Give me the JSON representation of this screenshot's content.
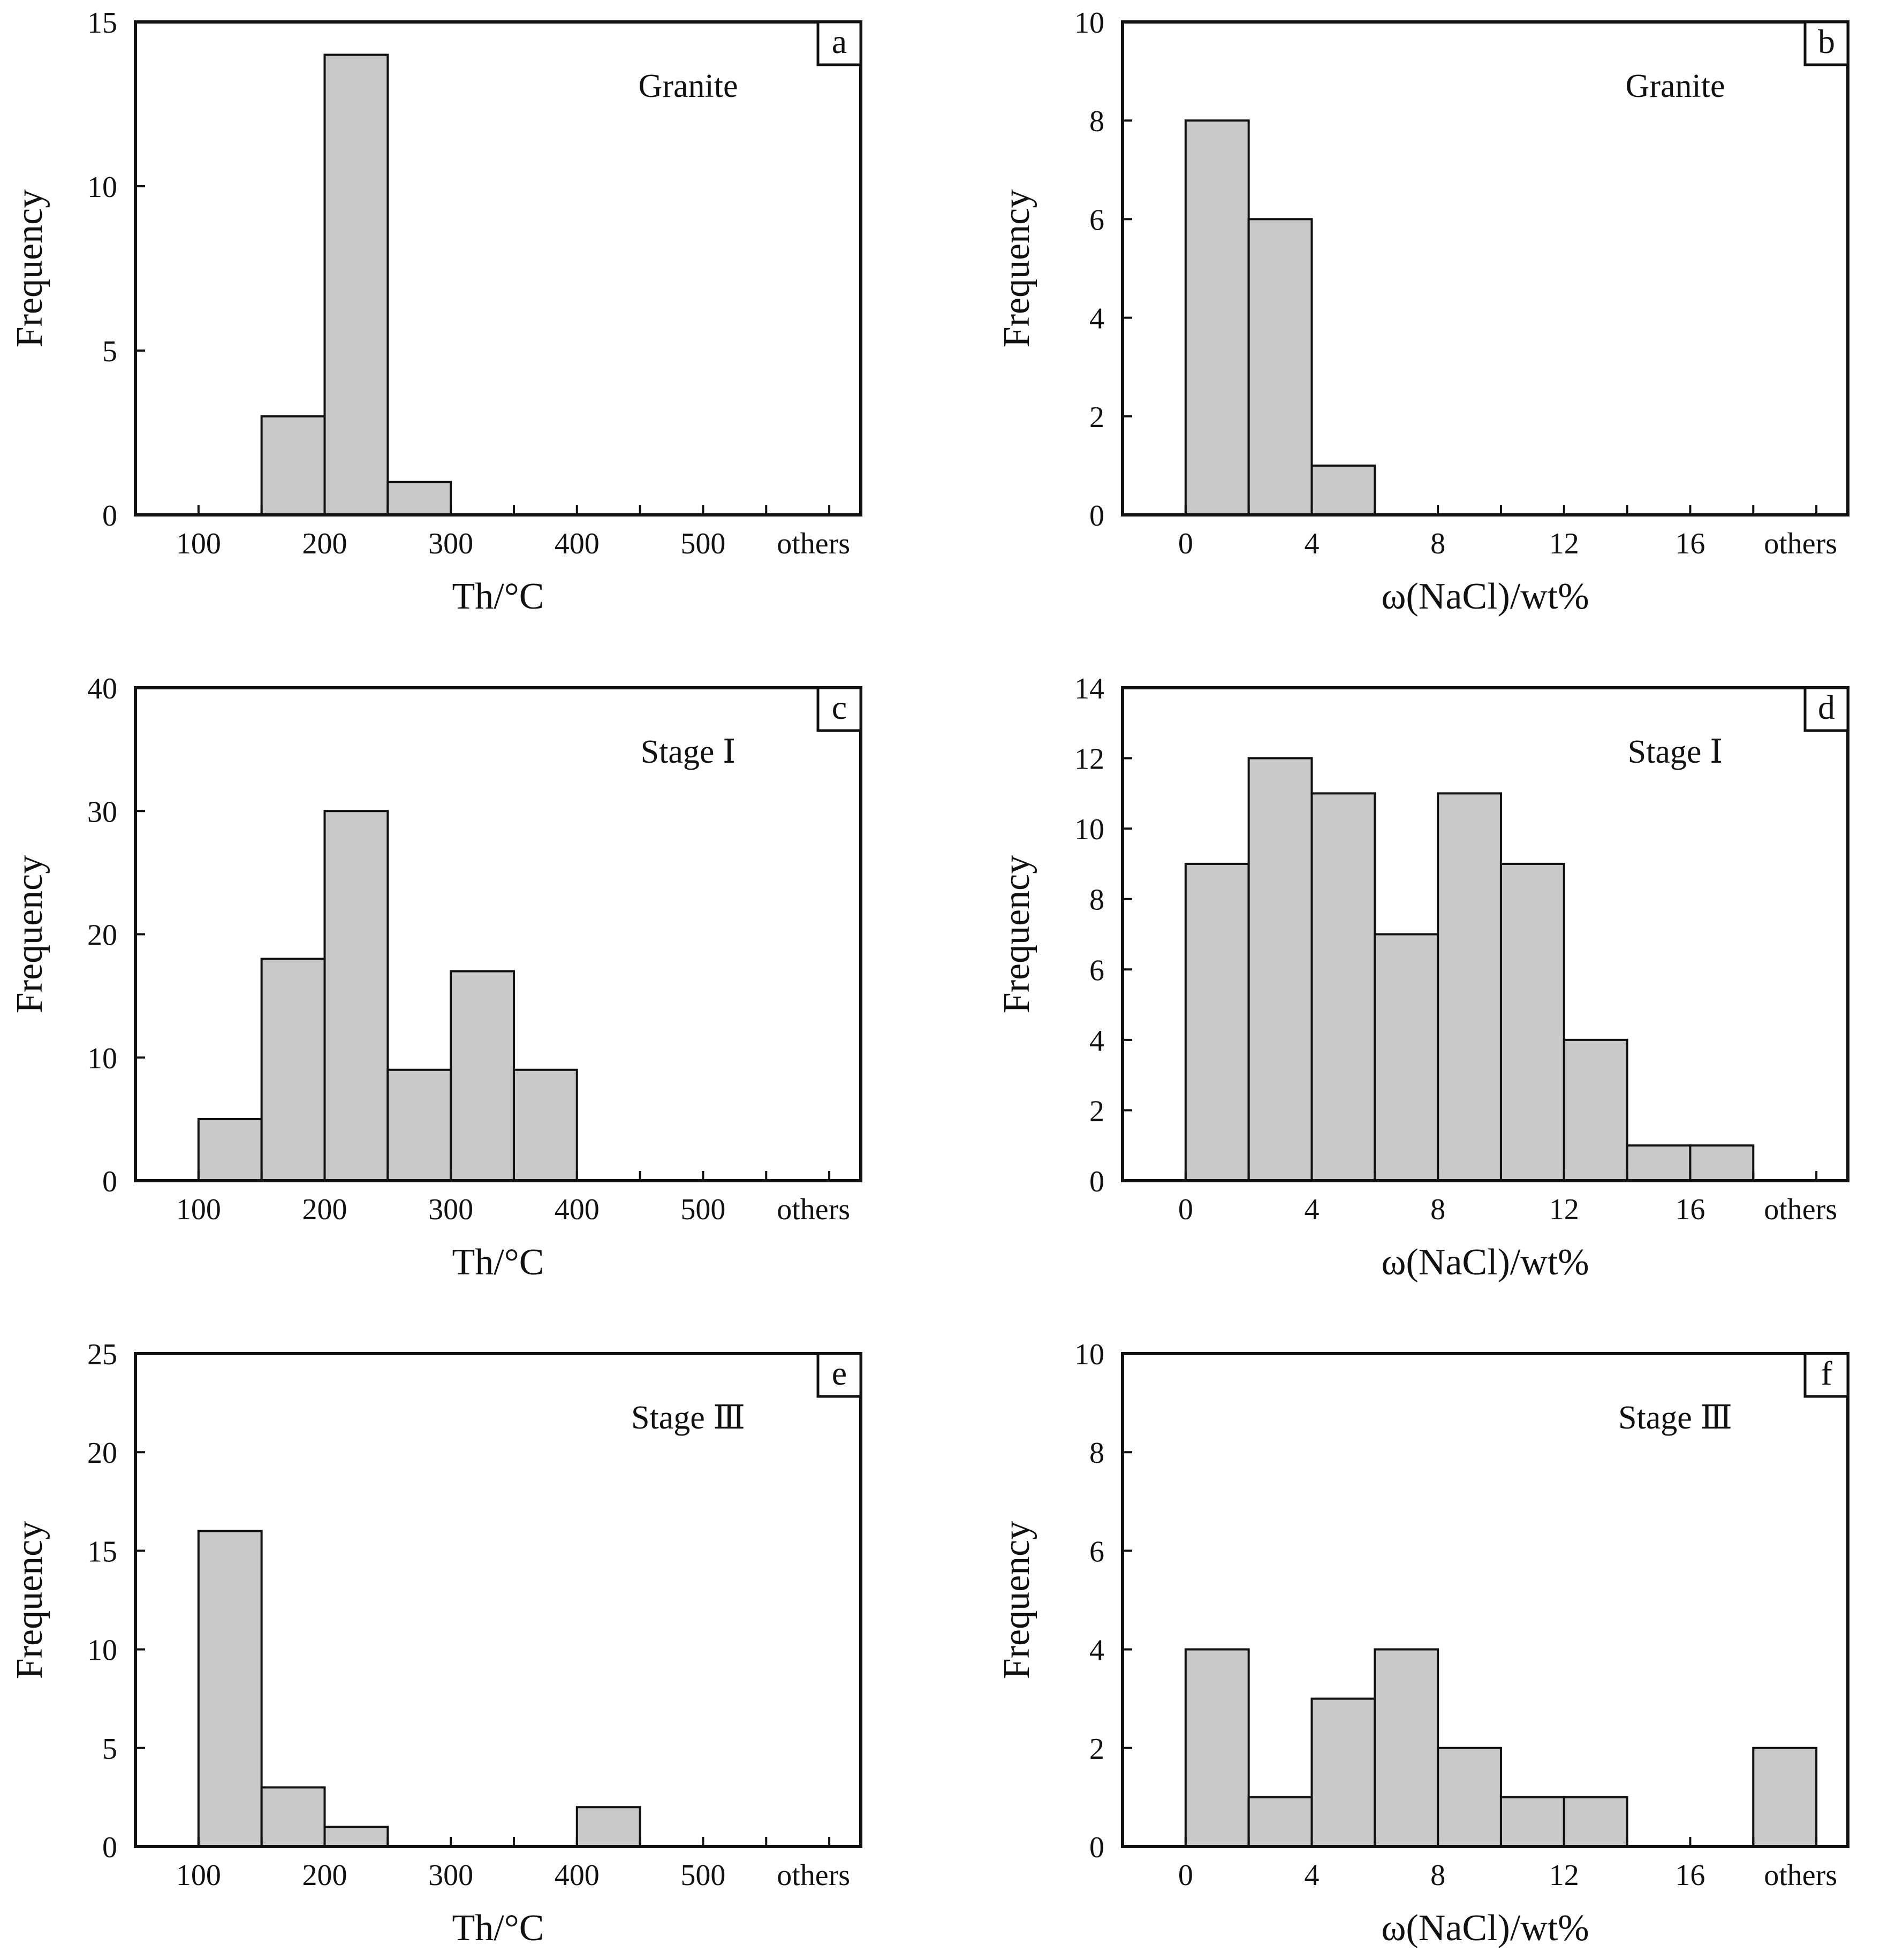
{
  "chart_data": [
    {
      "id": "a",
      "type": "bar",
      "panel_label": "a",
      "title": "Granite",
      "xlabel": "Th/°C",
      "ylabel": "Frequency",
      "ylim": [
        0,
        15
      ],
      "yticks": [
        0,
        5,
        10,
        15
      ],
      "xtick_labels": [
        "100",
        "200",
        "300",
        "400",
        "500",
        "others"
      ],
      "bin_edges": [
        100,
        150,
        200,
        250,
        300,
        350,
        400,
        450,
        500,
        550,
        600
      ],
      "bars": [
        {
          "from": 150,
          "to": 200,
          "value": 3
        },
        {
          "from": 200,
          "to": 250,
          "value": 14
        },
        {
          "from": 250,
          "to": 300,
          "value": 1
        }
      ]
    },
    {
      "id": "b",
      "type": "bar",
      "panel_label": "b",
      "title": "Granite",
      "xlabel": "ω(NaCl)/wt%",
      "ylabel": "Frequency",
      "ylim": [
        0,
        10
      ],
      "yticks": [
        0,
        2,
        4,
        6,
        8,
        10
      ],
      "xtick_labels": [
        "0",
        "4",
        "8",
        "12",
        "16",
        "others"
      ],
      "bin_edges": [
        0,
        2,
        4,
        6,
        8,
        10,
        12,
        14,
        16,
        18,
        20
      ],
      "bars": [
        {
          "from": 0,
          "to": 2,
          "value": 8
        },
        {
          "from": 2,
          "to": 4,
          "value": 6
        },
        {
          "from": 4,
          "to": 6,
          "value": 1
        }
      ]
    },
    {
      "id": "c",
      "type": "bar",
      "panel_label": "c",
      "title": "Stage Ⅰ",
      "xlabel": "Th/°C",
      "ylabel": "Frequency",
      "ylim": [
        0,
        40
      ],
      "yticks": [
        0,
        10,
        20,
        30,
        40
      ],
      "xtick_labels": [
        "100",
        "200",
        "300",
        "400",
        "500",
        "others"
      ],
      "bin_edges": [
        100,
        150,
        200,
        250,
        300,
        350,
        400,
        450,
        500,
        550,
        600
      ],
      "bars": [
        {
          "from": 100,
          "to": 150,
          "value": 5
        },
        {
          "from": 150,
          "to": 200,
          "value": 18
        },
        {
          "from": 200,
          "to": 250,
          "value": 30
        },
        {
          "from": 250,
          "to": 300,
          "value": 9
        },
        {
          "from": 300,
          "to": 350,
          "value": 17
        },
        {
          "from": 350,
          "to": 400,
          "value": 9
        }
      ]
    },
    {
      "id": "d",
      "type": "bar",
      "panel_label": "d",
      "title": "Stage Ⅰ",
      "xlabel": "ω(NaCl)/wt%",
      "ylabel": "Frequency",
      "ylim": [
        0,
        14
      ],
      "yticks": [
        0,
        2,
        4,
        6,
        8,
        10,
        12,
        14
      ],
      "xtick_labels": [
        "0",
        "4",
        "8",
        "12",
        "16",
        "others"
      ],
      "bin_edges": [
        0,
        2,
        4,
        6,
        8,
        10,
        12,
        14,
        16,
        18,
        20
      ],
      "bars": [
        {
          "from": 0,
          "to": 2,
          "value": 9
        },
        {
          "from": 2,
          "to": 4,
          "value": 12
        },
        {
          "from": 4,
          "to": 6,
          "value": 11
        },
        {
          "from": 6,
          "to": 8,
          "value": 7
        },
        {
          "from": 8,
          "to": 10,
          "value": 11
        },
        {
          "from": 10,
          "to": 12,
          "value": 9
        },
        {
          "from": 12,
          "to": 14,
          "value": 4
        },
        {
          "from": 14,
          "to": 16,
          "value": 1
        },
        {
          "from": 16,
          "to": 18,
          "value": 1
        }
      ]
    },
    {
      "id": "e",
      "type": "bar",
      "panel_label": "e",
      "title": "Stage Ⅲ",
      "xlabel": "Th/°C",
      "ylabel": "Frequency",
      "ylim": [
        0,
        25
      ],
      "yticks": [
        0,
        5,
        10,
        15,
        20,
        25
      ],
      "xtick_labels": [
        "100",
        "200",
        "300",
        "400",
        "500",
        "others"
      ],
      "bin_edges": [
        100,
        150,
        200,
        250,
        300,
        350,
        400,
        450,
        500,
        550,
        600
      ],
      "bars": [
        {
          "from": 100,
          "to": 150,
          "value": 16
        },
        {
          "from": 150,
          "to": 200,
          "value": 3
        },
        {
          "from": 200,
          "to": 250,
          "value": 1
        },
        {
          "from": 400,
          "to": 450,
          "value": 2
        }
      ]
    },
    {
      "id": "f",
      "type": "bar",
      "panel_label": "f",
      "title": "Stage Ⅲ",
      "xlabel": "ω(NaCl)/wt%",
      "ylabel": "Frequency",
      "ylim": [
        0,
        10
      ],
      "yticks": [
        0,
        2,
        4,
        6,
        8,
        10
      ],
      "xtick_labels": [
        "0",
        "4",
        "8",
        "12",
        "16",
        "others"
      ],
      "bin_edges": [
        0,
        2,
        4,
        6,
        8,
        10,
        12,
        14,
        16,
        18,
        20
      ],
      "bars": [
        {
          "from": 0,
          "to": 2,
          "value": 4
        },
        {
          "from": 2,
          "to": 4,
          "value": 1
        },
        {
          "from": 4,
          "to": 6,
          "value": 3
        },
        {
          "from": 6,
          "to": 8,
          "value": 4
        },
        {
          "from": 8,
          "to": 10,
          "value": 2
        },
        {
          "from": 10,
          "to": 12,
          "value": 1
        },
        {
          "from": 12,
          "to": 14,
          "value": 1
        },
        {
          "from": 18,
          "to": 20,
          "value": 2
        }
      ]
    }
  ]
}
